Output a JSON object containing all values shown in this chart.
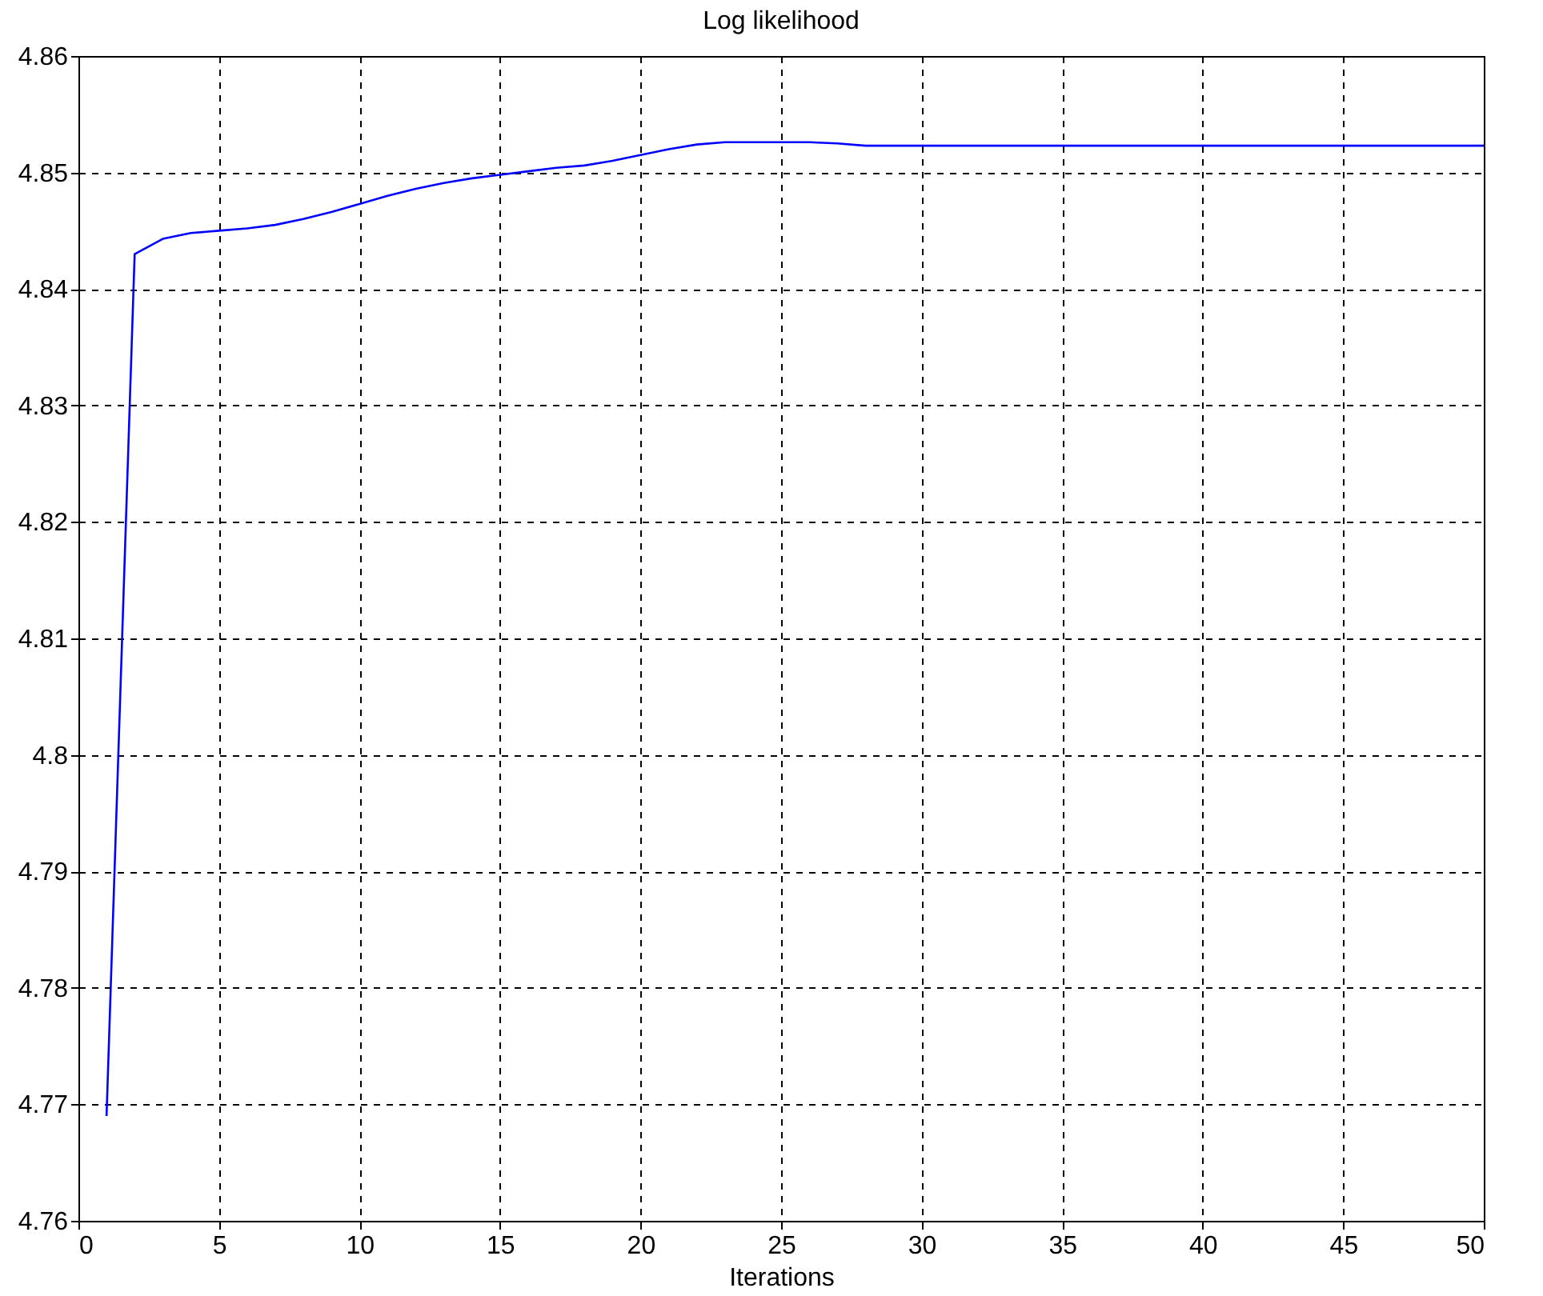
{
  "chart_data": {
    "type": "line",
    "title": "Log likelihood",
    "xlabel": "Iterations",
    "x": [
      1,
      2,
      3,
      4,
      5,
      6,
      7,
      8,
      9,
      10,
      11,
      12,
      13,
      14,
      15,
      16,
      17,
      18,
      19,
      20,
      21,
      22,
      23,
      24,
      25,
      26,
      27,
      28,
      30,
      35,
      40,
      45,
      50
    ],
    "series": [
      {
        "color": "#0000ff",
        "values": [
          4.769,
          4.843,
          4.8443,
          4.8448,
          4.845,
          4.8452,
          4.8455,
          4.846,
          4.8466,
          4.8473,
          4.848,
          4.8486,
          4.8491,
          4.8495,
          4.8498,
          4.8501,
          4.8504,
          4.8506,
          4.851,
          4.8515,
          4.852,
          4.8524,
          4.8526,
          4.8526,
          4.8526,
          4.8526,
          4.8525,
          4.8523,
          4.8523,
          4.8523,
          4.8523,
          4.8523,
          4.8523
        ]
      }
    ],
    "xlim": [
      0,
      50
    ],
    "xticks": [
      0,
      5,
      10,
      15,
      20,
      25,
      30,
      35,
      40,
      45,
      50
    ],
    "ylim": [
      4.76,
      4.86
    ],
    "yticks": [
      4.76,
      4.77,
      4.78,
      4.79,
      4.8,
      4.81,
      4.82,
      4.83,
      4.84,
      4.85,
      4.86
    ],
    "grid": true,
    "legend": false
  }
}
